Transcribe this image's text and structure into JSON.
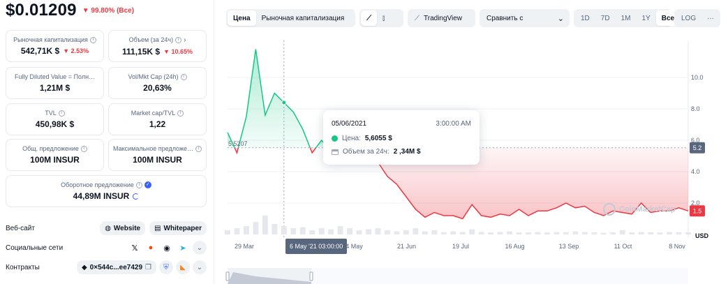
{
  "header": {
    "price": "$0.01209",
    "change": "▼ 99.80% (Все)"
  },
  "stats": [
    {
      "label": "Рыночная капитализация",
      "value": "542,71K $",
      "change": "▼ 2.53%"
    },
    {
      "label": "Объем (за 24ч)",
      "value": "111,15K $",
      "change": "▼ 10.65%"
    },
    {
      "label": "Fully Diluted Value = Полн…",
      "value": "1,21M $"
    },
    {
      "label": "Vol/Mkt Cap (24h)",
      "value": "20,63%"
    },
    {
      "label": "TVL",
      "value": "450,98K $"
    },
    {
      "label": "Market cap/TVL",
      "value": "1,22"
    },
    {
      "label": "Общ. предложение",
      "value": "100M INSUR"
    },
    {
      "label": "Максимальное предложе…",
      "value": "100M INSUR"
    },
    {
      "label": "Оборотное предложение",
      "value": "44,89M INSUR"
    }
  ],
  "links": {
    "website_label": "Веб-сайт",
    "website_btn": "Website",
    "whitepaper_btn": "Whitepaper",
    "social_label": "Социальные сети",
    "contracts_label": "Контракты",
    "contract_addr": "0×544c...ee7429"
  },
  "toolbar": {
    "tab_price": "Цена",
    "tab_mcap": "Рыночная капитализация",
    "tradingview": "TradingView",
    "compare": "Сравнить с",
    "ranges": [
      "1D",
      "7D",
      "1M",
      "1Y",
      "Все"
    ],
    "active_range": "Все",
    "log": "LOG",
    "more": "···"
  },
  "chart_data": {
    "type": "line",
    "title": "",
    "ylabel": "USD",
    "y_ticks": [
      "10.0",
      "8.0",
      "6.0",
      "4.0",
      "2.0"
    ],
    "x_ticks": [
      "29 Mar",
      "26 Apr",
      "24 May",
      "21 Jun",
      "19 Jul",
      "16 Aug",
      "13 Sep",
      "11 Oct",
      "8 Nov"
    ],
    "reference_label": "5.5207",
    "reference_value": 5.5207,
    "current_tag": "5.2",
    "current_low_tag": "1.5",
    "ylim": [
      0,
      12
    ],
    "series": [
      {
        "values": [
          6.5,
          5.2,
          7.5,
          11.8,
          7.6,
          9.0,
          8.4,
          7.8,
          6.7,
          5.2,
          6.0,
          5.3,
          5.9,
          6.6,
          5.6,
          5.2,
          4.6,
          3.7,
          3.2,
          2.4,
          1.6,
          1.1,
          1.4,
          1.2,
          1.2,
          1.0,
          1.9,
          1.2,
          1.1,
          1.3,
          1.2,
          1.6,
          1.2,
          1.5,
          1.5,
          1.7,
          2.0,
          1.7,
          1.8,
          1.4,
          1.2,
          1.5,
          1.4,
          1.3,
          2.0,
          1.4,
          1.5,
          1.5,
          1.7,
          1.5
        ]
      }
    ],
    "volume": [
      0.2,
      0.3,
      0.4,
      0.6,
      0.9,
      0.5,
      0.4,
      0.3,
      0.35,
      0.2,
      0.3,
      0.25,
      0.4,
      0.3,
      0.2,
      0.25,
      0.3,
      0.2,
      0.15,
      0.2,
      0.3,
      0.15,
      0.2,
      0.1,
      0.15,
      0.12,
      0.25,
      0.12,
      0.1,
      0.12,
      0.15,
      0.1,
      0.1,
      0.12,
      0.1,
      0.12,
      0.1,
      0.15,
      0.12,
      0.1,
      0.08,
      0.1,
      0.2,
      0.1,
      0.12,
      0.1,
      0.1,
      0.12,
      0.1,
      0.1
    ],
    "tooltip": {
      "date": "05/06/2021",
      "time": "3:00:00 AM",
      "price_label": "Цена:",
      "price_value": "5,6055 $",
      "volume_label": "Объем за 24ч:",
      "volume_value": "2 ,34M $"
    },
    "crosshair_label": "6 May '21 03:00:00",
    "colors": {
      "up": "#16c784",
      "down": "#ea3943"
    }
  },
  "watermark": "CoinMarketCap"
}
